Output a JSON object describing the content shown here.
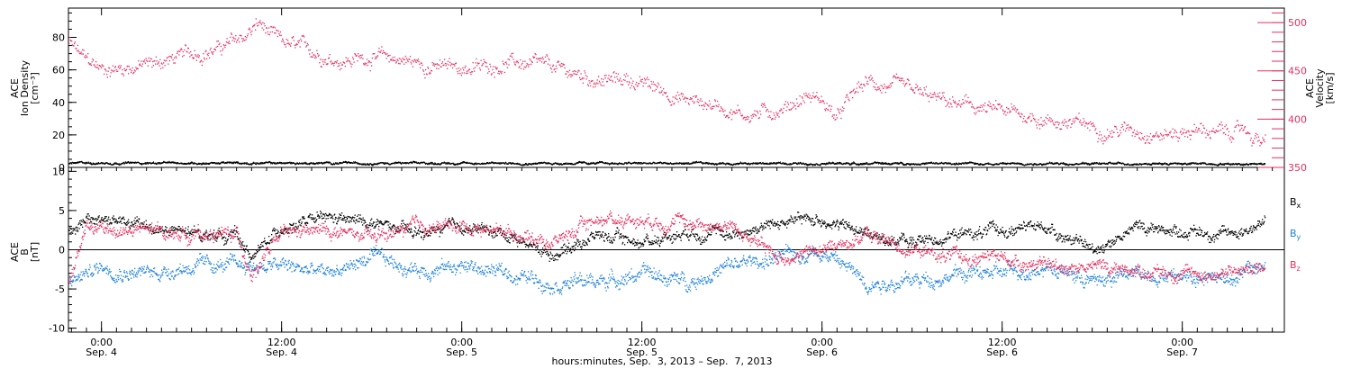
{
  "colors": {
    "black": "#000000",
    "pink": "#e8305c",
    "blue": "#1e82dc"
  },
  "chart_data": [
    {
      "type": "scatter",
      "panel": "top",
      "left_axis": {
        "label_lines": [
          "ACE",
          "Ion Density",
          "[cm⁻³]"
        ],
        "ylim": [
          0,
          98
        ],
        "ticks": [
          "0",
          "20",
          "40",
          "60",
          "80"
        ]
      },
      "right_axis": {
        "label_lines": [
          "ACE",
          "Velocity",
          "[km/s]"
        ],
        "ylim": [
          350,
          515
        ],
        "ticks": [
          "350",
          "400",
          "450",
          "500"
        ]
      },
      "xlim_hours": [
        -2.2,
        78.8
      ],
      "grid": false,
      "series": [
        {
          "axis": "right",
          "color": "#e8305c",
          "anchors_hours": [
            -2.2,
            -1,
            0,
            2,
            4,
            6,
            8,
            9.5,
            10.5,
            11,
            12,
            14,
            16,
            18,
            20,
            22,
            24,
            26,
            27,
            28,
            30,
            32,
            33.5,
            35,
            37,
            39,
            41,
            43,
            45,
            47,
            48,
            49,
            50,
            51,
            53,
            55,
            57,
            59,
            61,
            63,
            65,
            67,
            69,
            71,
            73,
            75,
            76,
            77.5
          ],
          "values": [
            480,
            460,
            452,
            455,
            460,
            468,
            475,
            485,
            500,
            490,
            478,
            470,
            462,
            465,
            462,
            455,
            453,
            455,
            460,
            458,
            452,
            445,
            440,
            442,
            432,
            420,
            415,
            405,
            410,
            425,
            420,
            400,
            425,
            438,
            432,
            422,
            415,
            410,
            405,
            400,
            395,
            390,
            390,
            385,
            390,
            385,
            390,
            375
          ],
          "noise": 9
        },
        {
          "axis": "left",
          "color": "#000000",
          "anchors_hours": [
            -2.2,
            77.5
          ],
          "values": [
            3,
            2.5
          ],
          "noise": 0.8
        }
      ]
    },
    {
      "type": "scatter",
      "panel": "bottom",
      "left_axis": {
        "label_lines": [
          "ACE",
          "B",
          "[nT]"
        ],
        "ylim": [
          -10.5,
          10.5
        ],
        "ticks": [
          "-10",
          "-5",
          "0",
          "5",
          "10"
        ]
      },
      "xlim_hours": [
        -2.2,
        78.8
      ],
      "grid": false,
      "zero_line": true,
      "legend": [
        "B",
        "B",
        "B"
      ],
      "legend_subscripts": [
        "x",
        "y",
        "z"
      ],
      "series": [
        {
          "name": "B",
          "sub": "x",
          "color": "#000000",
          "anchors_hours": [
            -2.2,
            0,
            3,
            6,
            9,
            10,
            12,
            15,
            18,
            21,
            24,
            27,
            30,
            33,
            36,
            39,
            42,
            45,
            48,
            51,
            54,
            57,
            60,
            63,
            66,
            69,
            72,
            75,
            77.5
          ],
          "values": [
            3,
            4,
            3,
            2,
            2,
            -1,
            3,
            4,
            3.5,
            2,
            3,
            2,
            -0.5,
            2,
            1,
            2.5,
            2,
            3.5,
            4,
            2,
            1,
            2,
            2.5,
            3,
            0,
            3,
            2.5,
            2,
            3.5
          ],
          "noise": 0.9
        },
        {
          "name": "B",
          "sub": "y",
          "color": "#1e82dc",
          "anchors_hours": [
            -2.2,
            0,
            3,
            6,
            9,
            12,
            15,
            18,
            21,
            24,
            27,
            30,
            33,
            36,
            39,
            42,
            45,
            48,
            51,
            54,
            57,
            60,
            63,
            66,
            69,
            72,
            75,
            77.5
          ],
          "values": [
            -4,
            -2,
            -3,
            -2,
            -2,
            -2,
            -3,
            -1,
            -2.5,
            -2,
            -3,
            -4,
            -4,
            -3,
            -4,
            -2,
            -1,
            0,
            -4,
            -4,
            -3,
            -3,
            -2,
            -4,
            -3,
            -3,
            -3.5,
            -2
          ],
          "noise": 1.1
        },
        {
          "name": "B",
          "sub": "z",
          "color": "#e8305c",
          "anchors_hours": [
            -2.2,
            -1,
            0,
            3,
            6,
            9,
            10,
            12,
            15,
            18,
            21,
            24,
            27,
            30,
            33,
            36,
            39,
            42,
            45,
            48,
            51,
            54,
            57,
            60,
            63,
            66,
            69,
            72,
            75,
            77.5
          ],
          "values": [
            -4,
            3,
            2.5,
            2.5,
            2,
            2,
            -3,
            2,
            2.5,
            1.5,
            3,
            3,
            2.5,
            1,
            4,
            4,
            3.5,
            3,
            -1,
            0,
            2,
            0,
            -1,
            -1,
            -2,
            -2,
            -2.5,
            -3,
            -3,
            -2
          ],
          "noise": 1.0
        }
      ]
    }
  ],
  "x_axis": {
    "ticks": [
      {
        "hour": 0,
        "time": "0:00",
        "date": "Sep. 4"
      },
      {
        "hour": 12,
        "time": "12:00",
        "date": "Sep. 4"
      },
      {
        "hour": 24,
        "time": "0:00",
        "date": "Sep. 5"
      },
      {
        "hour": 36,
        "time": "12:00",
        "date": "Sep. 5"
      },
      {
        "hour": 48,
        "time": "0:00",
        "date": "Sep. 6"
      },
      {
        "hour": 60,
        "time": "12:00",
        "date": "Sep. 6"
      },
      {
        "hour": 72,
        "time": "0:00",
        "date": "Sep. 7"
      }
    ],
    "minor_step_hours": 1,
    "title": "hours:minutes, Sep.  3, 2013 – Sep.  7, 2013"
  }
}
